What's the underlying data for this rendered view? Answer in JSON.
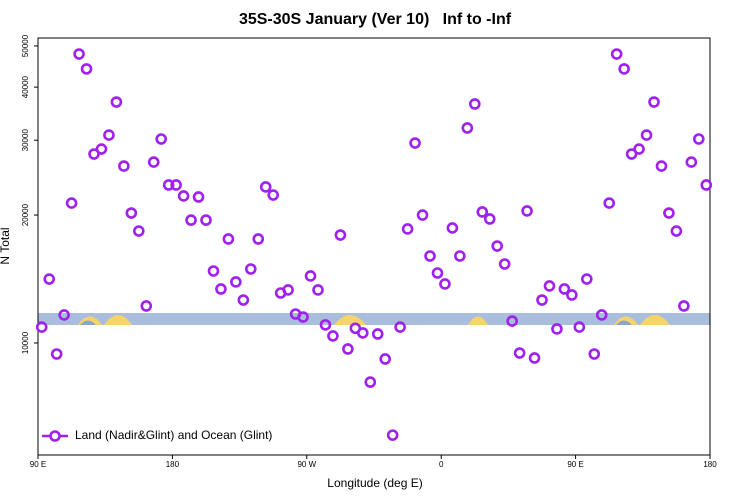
{
  "chart_data": {
    "type": "scatter",
    "title": "35S-30S January (Ver 10)   Inf to -Inf",
    "x_label": "Longitude (deg E)",
    "y_label": "N Total",
    "log_y": true,
    "legend_position": "lower left",
    "xlim": [
      90,
      540
    ],
    "xticks": [
      {
        "value": 90,
        "label": "90 E"
      },
      180,
      {
        "value": 270,
        "label": "90 W"
      },
      {
        "value": 360,
        "label": "0"
      },
      {
        "value": 450,
        "label": "90 E"
      },
      {
        "value": 540,
        "label": "180"
      }
    ],
    "ylim": [
      5450,
      52200
    ],
    "yticks": [
      10000,
      20000,
      30000,
      40000,
      50000
    ],
    "series": [
      {
        "name": "Land (Nadir&Glint) and Ocean (Glint)",
        "color": "#a020f0",
        "x": [
          92.5,
          97.5,
          102.5,
          107.5,
          112.5,
          117.5,
          122.5,
          127.5,
          132.5,
          137.5,
          142.5,
          147.5,
          152.5,
          157.5,
          162.5,
          167.5,
          172.5,
          177.5,
          182.5,
          187.5,
          192.5,
          197.5,
          202.5,
          207.5,
          212.5,
          217.5,
          222.5,
          227.5,
          232.5,
          237.5,
          242.5,
          247.5,
          252.5,
          257.5,
          262.5,
          267.5,
          272.5,
          277.5,
          282.5,
          287.5,
          292.5,
          297.5,
          302.5,
          307.5,
          312.5,
          317.5,
          322.5,
          327.5,
          332.5,
          337.5,
          342.5,
          347.5,
          352.5,
          357.5,
          362.5,
          367.5,
          372.5,
          377.5,
          382.5,
          387.5,
          392.5,
          397.5,
          402.5,
          407.5,
          412.5,
          417.5,
          422.5,
          427.5,
          432.5,
          437.5,
          442.5,
          447.5,
          452.5,
          457.5,
          462.5,
          467.5,
          472.5,
          477.5,
          482.5,
          487.5,
          492.5,
          497.5,
          502.5,
          507.5,
          512.5,
          517.5,
          522.5,
          527.5,
          532.5,
          537.5
        ],
        "values": [
          10900,
          14140,
          9420,
          11640,
          21340,
          47860,
          44150,
          27840,
          28600,
          30850,
          36900,
          26080,
          20220,
          18340,
          12220,
          26650,
          30200,
          23540,
          23540,
          22180,
          19460,
          22060,
          19460,
          14770,
          13400,
          17570,
          13920,
          12620,
          14930,
          17570,
          23290,
          22290,
          13110,
          13330,
          11700,
          11510,
          14380,
          13330,
          11030,
          10390,
          17950,
          9680,
          10830,
          10560,
          8090,
          10500,
          9170,
          6070,
          10900,
          18550,
          29550,
          20000,
          16020,
          14610,
          13770,
          18650,
          16020,
          32060,
          36510,
          20340,
          19580,
          16910,
          15340,
          11260,
          9470,
          20450,
          9220,
          12620,
          13620,
          10790,
          13400,
          12970,
          10900,
          14140,
          9420,
          11640,
          21340,
          47860,
          44150,
          27840,
          28600,
          30850,
          36900,
          26080,
          20220,
          18340,
          12220,
          26650,
          30200,
          23540
        ]
      }
    ]
  }
}
